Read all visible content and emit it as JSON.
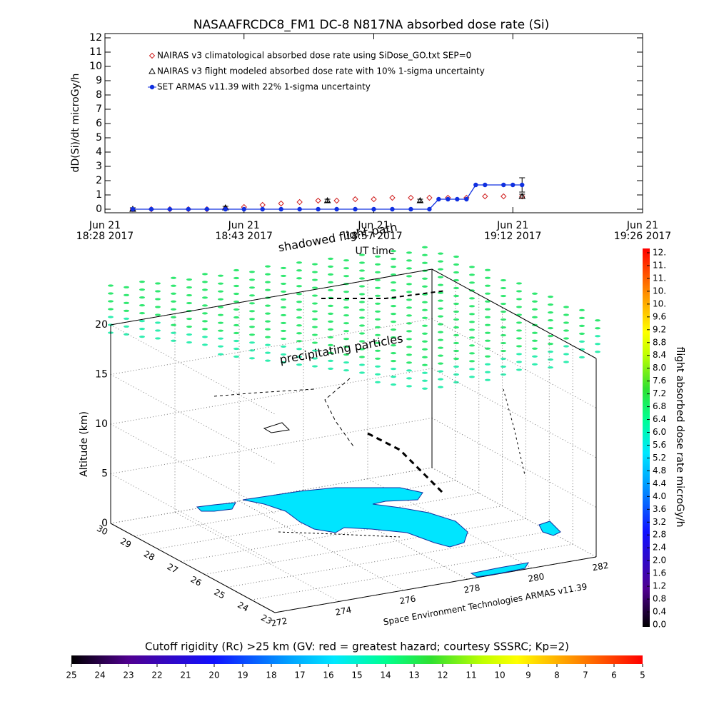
{
  "chart_data": [
    {
      "type": "line",
      "title": "NASAAFRCDC8_FM1 DC-8   N817NA absorbed dose rate (Si)",
      "ylabel": "dD(Si)/dt microGy/h",
      "xlabel": "UT time",
      "xlim": [
        "18:28",
        "19:26"
      ],
      "xticks": [
        {
          "value": "18:28",
          "label": "Jun 21\n18:28 2017"
        },
        {
          "value": "18:43",
          "label": "Jun 21\n18:43 2017"
        },
        {
          "value": "18:57",
          "label": "Jun 21\n18:57 2017"
        },
        {
          "value": "19:12",
          "label": "Jun 21\n19:12 2017"
        },
        {
          "value": "19:26",
          "label": "Jun 21\n19:26 2017"
        }
      ],
      "ylim": [
        -0.25,
        12.3
      ],
      "yticks": [
        0,
        1,
        2,
        3,
        4,
        5,
        6,
        7,
        8,
        9,
        10,
        11,
        12
      ],
      "legend": "upper left",
      "series": [
        {
          "name": "NAIRAS v3 climatological absorbed dose rate using SiDose_GO.txt SEP=0",
          "color": "#d02020",
          "marker": "diamond",
          "linestyle": "none",
          "x": [
            "18:31",
            "18:33",
            "18:35",
            "18:37",
            "18:39",
            "18:41",
            "18:43",
            "18:45",
            "18:47",
            "18:49",
            "18:51",
            "18:53",
            "18:55",
            "18:57",
            "18:59",
            "19:01",
            "19:03",
            "19:05",
            "19:07",
            "19:09",
            "19:11",
            "19:13"
          ],
          "values": [
            0,
            0,
            0,
            0,
            0,
            0.05,
            0.15,
            0.3,
            0.4,
            0.5,
            0.6,
            0.6,
            0.7,
            0.7,
            0.8,
            0.8,
            0.8,
            0.8,
            0.8,
            0.9,
            0.9,
            0.9
          ]
        },
        {
          "name": "NAIRAS v3 flight modeled absorbed dose rate with 10% 1-sigma uncertainty",
          "color": "#000000",
          "marker": "triangle",
          "linestyle": "none",
          "x": [
            "18:31",
            "18:41",
            "18:52",
            "19:02",
            "19:13"
          ],
          "values": [
            0,
            0.1,
            0.6,
            0.6,
            0.9
          ],
          "errors": [
            0.1,
            0.1,
            0.1,
            0.1,
            0.15
          ]
        },
        {
          "name": "SET ARMAS v11.39 with 22% 1-sigma uncertainty",
          "color": "#1030e0",
          "marker": "circle",
          "linestyle": "solid",
          "x": [
            "18:31",
            "18:33",
            "18:35",
            "18:37",
            "18:39",
            "18:41",
            "18:43",
            "18:45",
            "18:47",
            "18:49",
            "18:51",
            "18:53",
            "18:55",
            "18:57",
            "18:59",
            "19:01",
            "19:03",
            "19:04",
            "19:05",
            "19:06",
            "19:07",
            "19:08",
            "19:09",
            "19:11",
            "19:12",
            "19:13"
          ],
          "values": [
            0,
            0,
            0,
            0,
            0,
            0,
            0,
            0,
            0,
            0,
            0,
            0,
            0,
            0,
            0,
            0,
            0,
            0.7,
            0.7,
            0.7,
            0.7,
            1.7,
            1.7,
            1.7,
            1.7,
            1.7
          ],
          "errors": [
            null,
            null,
            null,
            null,
            null,
            null,
            null,
            null,
            null,
            null,
            null,
            null,
            null,
            null,
            null,
            null,
            null,
            null,
            null,
            null,
            null,
            null,
            null,
            null,
            null,
            0.5
          ]
        }
      ]
    },
    {
      "type": "3d",
      "zlabel": "Altitude (km)",
      "zlim": [
        0,
        20
      ],
      "zticks": [
        0,
        5,
        10,
        15,
        20
      ],
      "latlim": [
        30,
        23
      ],
      "latticks": [
        30,
        29,
        28,
        27,
        26,
        25,
        24,
        23
      ],
      "lonlim": [
        272,
        282
      ],
      "lonticks": [
        272,
        274,
        276,
        278,
        280,
        282
      ],
      "annotations": [
        "shadowed flight path",
        "precipitating particles"
      ],
      "credit": "Space Environment Technologies ARMAS v11.39"
    },
    {
      "type": "colorbar",
      "title": "Cutoff rigidity (Rc) >25 km (GV: red = greatest hazard; courtesy SSSRC; Kp=2)",
      "xlim": [
        25,
        5
      ],
      "xticks": [
        25,
        24,
        23,
        22,
        21,
        20,
        19,
        18,
        17,
        16,
        15,
        14,
        13,
        12,
        11,
        10,
        9,
        8,
        7,
        6,
        5
      ]
    },
    {
      "type": "colorbar",
      "label": "flight absorbed dose rate microGy/h",
      "ylim": [
        0,
        11.6
      ],
      "yticks": [
        {
          "value": 0,
          "label": "0.0"
        },
        0.4,
        0.8,
        1.2,
        1.6,
        {
          "value": 2,
          "label": "2.0"
        },
        2.4,
        2.8,
        3.2,
        3.6,
        {
          "value": 4,
          "label": "4.0"
        },
        4.4,
        4.8,
        5.2,
        5.6,
        {
          "value": 6,
          "label": "6.0"
        },
        6.4,
        6.8,
        7.2,
        7.6,
        {
          "value": 8,
          "label": "8.0"
        },
        8.4,
        8.8,
        9.2,
        9.6,
        {
          "value": 10,
          "label": "10."
        },
        {
          "value": 10.4,
          "label": "10."
        },
        {
          "value": 10.8,
          "label": "11."
        },
        {
          "value": 11.2,
          "label": "11."
        },
        {
          "value": 11.6,
          "label": "12."
        }
      ]
    }
  ]
}
